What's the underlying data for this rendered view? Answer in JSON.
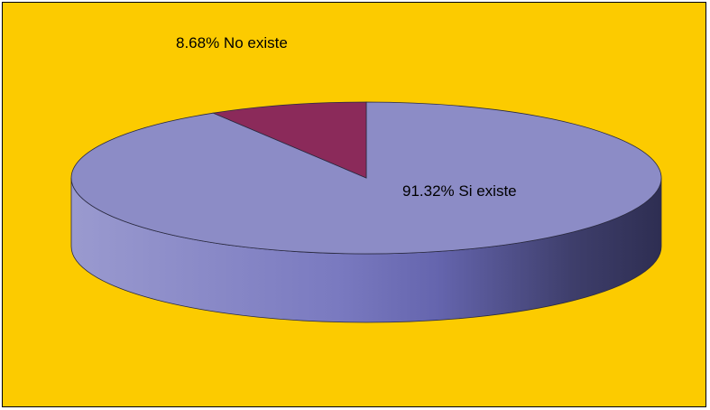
{
  "chart_data": {
    "type": "pie",
    "style": "3d",
    "slices": [
      {
        "label": "Si existe",
        "value": 91.32,
        "display": "91.32%  Si existe",
        "color": "#8C8CC6"
      },
      {
        "label": "No existe",
        "value": 8.68,
        "display": "8.68%  No existe",
        "color": "#8B2A5A"
      }
    ],
    "background": "#FCCB00",
    "title": "",
    "legend": "none"
  }
}
